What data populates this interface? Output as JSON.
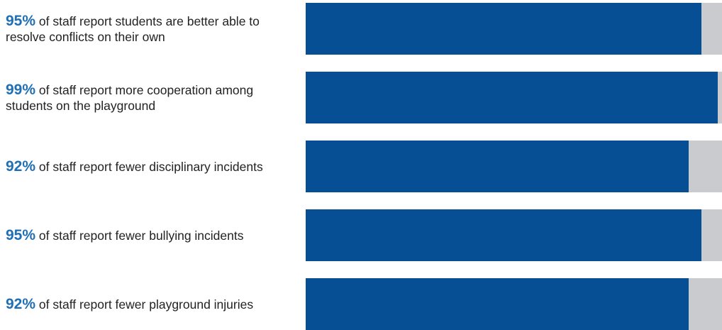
{
  "colors": {
    "accent": "#1f6fb5",
    "bar": "#064f94",
    "track": "#c9cbcf",
    "text": "#222222"
  },
  "chart_data": {
    "type": "bar",
    "orientation": "horizontal",
    "xlim": [
      0,
      100
    ],
    "items": [
      {
        "percent_label": "95%",
        "text": "of staff report students are better able to resolve conflicts on their own",
        "value": 95
      },
      {
        "percent_label": "99%",
        "text": "of staff report more cooperation among students on the playground",
        "value": 99
      },
      {
        "percent_label": "92%",
        "text": "of staff report fewer disciplinary incidents",
        "value": 92
      },
      {
        "percent_label": "95%",
        "text": "of staff report fewer bullying incidents",
        "value": 95
      },
      {
        "percent_label": "92%",
        "text": "of staff report fewer playground injuries",
        "value": 92
      }
    ]
  }
}
